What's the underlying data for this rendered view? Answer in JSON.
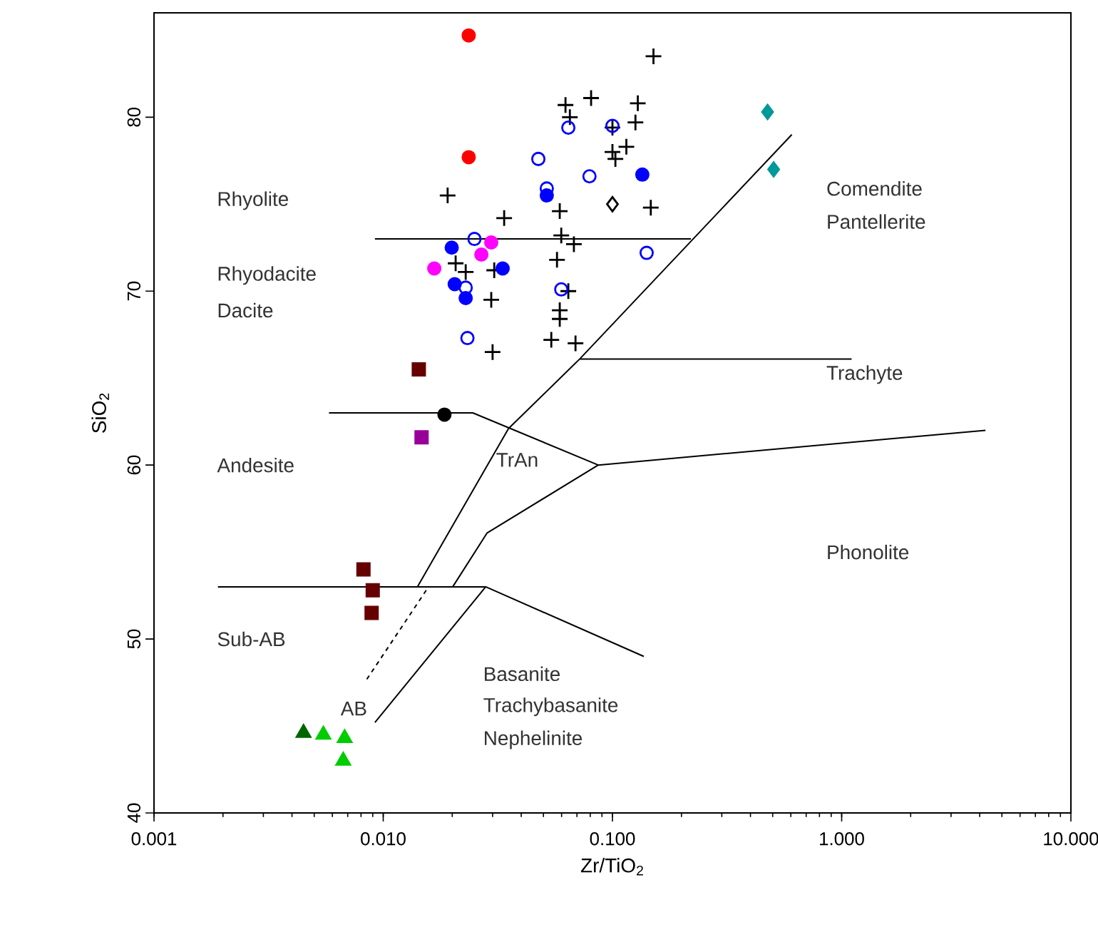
{
  "chart_data": {
    "type": "scatter",
    "xlabel": "Zr/TiO$_{2}$",
    "ylabel": "SiO$_{2}$",
    "log": "x",
    "grid": false,
    "legend": false,
    "xlim": [
      0.001,
      10
    ],
    "ylim": [
      40,
      86
    ],
    "xticks": [
      {
        "value": 0.001,
        "label": "0.001"
      },
      {
        "value": 0.01,
        "label": "0.010"
      },
      {
        "value": 0.1,
        "label": "0.100"
      },
      {
        "value": 1,
        "label": "1.000"
      },
      {
        "value": 10,
        "label": "10.000"
      }
    ],
    "yticks": [
      40,
      50,
      60,
      70,
      80
    ],
    "series": [
      {
        "marker": "cross",
        "color": "#000000",
        "x": [
          0.151,
          0.0624,
          0.0807,
          0.129,
          0.0652,
          0.126,
          0.115,
          0.1,
          0.103,
          0.0191,
          0.0337,
          0.0589,
          0.147,
          0.0598,
          0.0679,
          0.0207,
          0.0229,
          0.0305,
          0.0573,
          0.0642,
          0.0589,
          0.0296,
          0.0589,
          0.0541,
          0.069,
          0.03,
          0.1
        ],
        "values": [
          83.5,
          80.7,
          81.1,
          80.8,
          80.0,
          79.7,
          78.3,
          78.0,
          77.6,
          75.5,
          74.2,
          74.6,
          74.8,
          73.2,
          72.7,
          71.6,
          71.1,
          71.2,
          71.8,
          70.0,
          68.9,
          69.5,
          68.4,
          67.2,
          67.0,
          66.5,
          79.4
        ]
      },
      {
        "marker": "circle",
        "color": "#0000ff",
        "x": [
          0.0642,
          0.1,
          0.0475,
          0.0794,
          0.0517,
          0.025,
          0.141,
          0.0229,
          0.0598,
          0.0233
        ],
        "values": [
          79.4,
          79.5,
          77.6,
          76.6,
          75.9,
          73.0,
          72.2,
          70.2,
          70.1,
          67.3
        ]
      },
      {
        "marker": "circle",
        "color": "#0000ff",
        "x": [
          0.135,
          0.0517,
          0.0199,
          0.0332,
          0.0205,
          0.0229
        ],
        "values": [
          76.7,
          75.5,
          72.5,
          71.3,
          70.4,
          69.6
        ]
      },
      {
        "marker": "circle",
        "color": "#ff0000",
        "x": [
          0.0236,
          0.0236
        ],
        "values": [
          84.7,
          77.7
        ]
      },
      {
        "marker": "circle",
        "color": "#ff00ff",
        "x": [
          0.0296,
          0.0268,
          0.0167
        ],
        "values": [
          72.8,
          72.1,
          71.3
        ]
      },
      {
        "marker": "diamond",
        "color": "#000000",
        "x": [
          0.1
        ],
        "values": [
          75.0
        ]
      },
      {
        "marker": "diamond",
        "color": "#009999",
        "x": [
          0.475,
          0.505
        ],
        "values": [
          80.3,
          77.0
        ]
      },
      {
        "marker": "square",
        "color": "#660000",
        "x": [
          0.0143,
          0.0082,
          0.009,
          0.0089
        ],
        "values": [
          65.5,
          54.0,
          52.8,
          51.5
        ]
      },
      {
        "marker": "square",
        "color": "#990099",
        "x": [
          0.0147
        ],
        "values": [
          61.6
        ]
      },
      {
        "marker": "circle",
        "color": "#000000",
        "x": [
          0.0185
        ],
        "values": [
          62.9
        ]
      },
      {
        "marker": "triangle",
        "color": "#006600",
        "x": [
          0.00449
        ],
        "values": [
          44.6
        ]
      },
      {
        "marker": "triangle",
        "color": "#00cc00",
        "x": [
          0.00548,
          0.00679,
          0.00669
        ],
        "values": [
          44.5,
          44.3,
          43.0
        ]
      },
      {
        "type": "line",
        "marker": "none",
        "line_style": "solid",
        "color": "#000000",
        "x": [
          0.0092,
          0.22
        ],
        "values": [
          73.0,
          73.0
        ]
      },
      {
        "type": "line",
        "marker": "none",
        "line_style": "solid",
        "color": "#000000",
        "x": [
          0.0141,
          0.0352,
          0.072,
          0.606
        ],
        "values": [
          53.0,
          62.1,
          66.1,
          79.0
        ]
      },
      {
        "type": "line",
        "marker": "none",
        "line_style": "solid",
        "color": "#000000",
        "x": [
          0.072,
          1.105
        ],
        "values": [
          66.1,
          66.1
        ]
      },
      {
        "type": "line",
        "marker": "none",
        "line_style": "solid",
        "color": "#000000",
        "x": [
          0.0058,
          0.0246,
          0.0867,
          4.24
        ],
        "values": [
          63.0,
          63.0,
          60.0,
          62.0
        ]
      },
      {
        "type": "line",
        "marker": "none",
        "line_style": "solid",
        "color": "#000000",
        "x": [
          0.0867,
          0.0284,
          0.0201
        ],
        "values": [
          60.0,
          56.1,
          53.0
        ]
      },
      {
        "type": "line",
        "marker": "none",
        "line_style": "solid",
        "color": "#000000",
        "x": [
          0.0019,
          0.028
        ],
        "values": [
          53.0,
          53.0
        ]
      },
      {
        "type": "line",
        "marker": "none",
        "line_style": "solid",
        "color": "#000000",
        "x": [
          0.0092,
          0.028,
          0.137
        ],
        "values": [
          45.2,
          53.0,
          49.0
        ]
      },
      {
        "type": "line",
        "marker": "none",
        "line_style": "dashed",
        "color": "#000000",
        "x": [
          0.0154,
          0.0083
        ],
        "values": [
          52.8,
          47.5
        ]
      }
    ],
    "annotations": [
      "Rhyolite",
      "Rhyodacite",
      "Dacite",
      "Andesite",
      "TrAn",
      "Sub-AB",
      "AB",
      "Basanite",
      "Trachybasanite",
      "Nephelinite",
      "Comendite",
      "Pantellerite",
      "Trachyte",
      "Phonolite"
    ]
  }
}
